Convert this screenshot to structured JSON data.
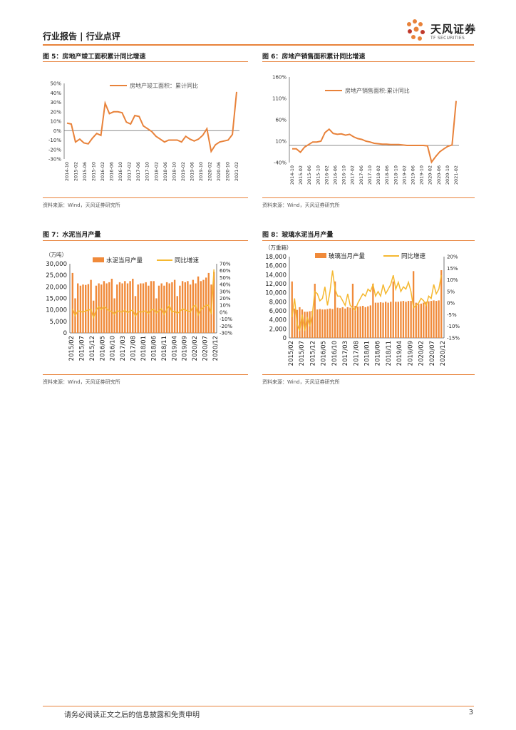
{
  "header": {
    "text": "行业报告 | 行业点评",
    "logo_main": "天风证券",
    "logo_sub": "TF SECURITIES"
  },
  "colors": {
    "accent": "#E8823A",
    "bar": "#F08A3A",
    "line2": "#F5B830"
  },
  "fig5": {
    "title": "图 5：房地产竣工面积累计同比增速",
    "source": "资料来源：Wind，天风证券研究所"
  },
  "fig6": {
    "title": "图 6：房地产销售面积累计同比增速",
    "source": "资料来源：Wind，天风证券研究所"
  },
  "fig7": {
    "title": "图 7：水泥当月产量",
    "source": "资料来源：Wind，天风证券研究所"
  },
  "fig8": {
    "title": "图 8：玻璃水泥当月产量",
    "source": "资料来源：Wind，天风证券研究所"
  },
  "footer": {
    "text": "请务必阅读正文之后的信息披露和免责申明",
    "page": "3"
  },
  "chart_data": [
    {
      "type": "line",
      "legend": "房地产竣工面积：累计同比",
      "yticks": [
        "50%",
        "40%",
        "30%",
        "20%",
        "10%",
        "0%",
        "-10%",
        "-20%",
        "-30%"
      ],
      "ylim": [
        -30,
        50
      ],
      "xticks": [
        "2014-10",
        "2015-02",
        "2015-06",
        "2015-10",
        "2016-02",
        "2016-06",
        "2016-10",
        "2017-02",
        "2017-06",
        "2017-10",
        "2018-02",
        "2018-06",
        "2018-10",
        "2019-02",
        "2019-06",
        "2019-10",
        "2020-02",
        "2020-06",
        "2020-10",
        "2021-02"
      ],
      "values": [
        8,
        7,
        -12,
        -9,
        -13,
        -14,
        -8,
        -3,
        -5,
        29,
        18,
        20,
        20,
        19,
        9,
        7,
        16,
        15,
        5,
        2,
        -1,
        -6,
        -9,
        -12,
        -10,
        -10,
        -10,
        -12,
        -6,
        -9,
        -11,
        -9,
        -5,
        2,
        -22,
        -15,
        -12,
        -11,
        -10,
        -4,
        41
      ]
    },
    {
      "type": "line",
      "legend": "房地产销售面积:累计同比",
      "yticks": [
        "160%",
        "110%",
        "60%",
        "10%",
        "-40%"
      ],
      "ylim": [
        -40,
        160
      ],
      "xticks": [
        "2014-10",
        "2015-02",
        "2015-06",
        "2015-10",
        "2016-02",
        "2016-06",
        "2016-10",
        "2017-02",
        "2017-06",
        "2017-10",
        "2018-02",
        "2018-06",
        "2018-10",
        "2019-02",
        "2019-06",
        "2019-10",
        "2020-02",
        "2020-06",
        "2020-10",
        "2021-02"
      ],
      "values": [
        -8,
        -8,
        -16,
        -4,
        2,
        8,
        8,
        10,
        30,
        38,
        28,
        26,
        27,
        24,
        26,
        20,
        16,
        14,
        10,
        8,
        5,
        4,
        3,
        3,
        2,
        2,
        2,
        1,
        0,
        0,
        0,
        0,
        0,
        -1,
        -39,
        -26,
        -15,
        -8,
        -2,
        1,
        104
      ]
    },
    {
      "type": "bar",
      "series": [
        {
          "name": "水泥当月产量",
          "values": [
            26000,
            15000,
            21500,
            20500,
            21000,
            20800,
            21200,
            23000,
            14000,
            20500,
            21500,
            21000,
            22500,
            21500,
            22000,
            23500,
            15000,
            21000,
            22000,
            21500,
            22500,
            21500,
            22500,
            23500,
            16000,
            21000,
            21500,
            21500,
            22000,
            20500,
            22500,
            22500,
            15000,
            20500,
            21500,
            20500,
            22000,
            21500,
            22000,
            23000,
            16000,
            20500,
            22500,
            22000,
            22500,
            21000,
            23000,
            21500,
            24500,
            22500,
            23000,
            24000,
            26000,
            21000,
            26500
          ]
        },
        {
          "name": "同比增速",
          "values": [
            5,
            -5,
            2,
            1,
            0,
            2,
            3,
            4,
            -8,
            3,
            8,
            4,
            8,
            5,
            2,
            1,
            -3,
            2,
            1,
            0,
            3,
            -1,
            2,
            3,
            -6,
            1,
            0,
            1,
            2,
            -2,
            3,
            4,
            -1,
            2,
            5,
            -3,
            4,
            10,
            0,
            2,
            -2,
            1,
            5,
            3,
            2,
            0,
            8,
            10,
            -4,
            4,
            7,
            10,
            10,
            -3,
            62
          ]
        }
      ],
      "yticks_left": [
        "30,000",
        "25,000",
        "20,000",
        "15,000",
        "10,000",
        "5,000",
        "0"
      ],
      "yticks_right": [
        "70%",
        "60%",
        "50%",
        "40%",
        "30%",
        "20%",
        "10%",
        "0%",
        "-10%",
        "-20%",
        "-30%"
      ],
      "ylim_left": [
        0,
        30000
      ],
      "ylim_right": [
        -30,
        70
      ],
      "unit": "（万吨）",
      "xticks": [
        "2015/02",
        "2015/07",
        "2015/12",
        "2016/05",
        "2016/10",
        "2017/03",
        "2017/08",
        "2018/01",
        "2018/06",
        "2018/11",
        "2019/04",
        "2019/09",
        "2020/02",
        "2020/07",
        "2020/12"
      ]
    },
    {
      "type": "bar",
      "series": [
        {
          "name": "玻璃当月产量",
          "values": [
            12500,
            6500,
            6200,
            6800,
            6300,
            5800,
            5800,
            5900,
            6000,
            12000,
            6300,
            6400,
            6300,
            6300,
            6400,
            6500,
            6400,
            12500,
            6700,
            6600,
            6800,
            6500,
            6800,
            6700,
            12000,
            7100,
            6900,
            7000,
            7100,
            6800,
            7000,
            7200,
            12000,
            7800,
            7800,
            7900,
            7800,
            8000,
            7800,
            8000,
            12500,
            8000,
            8000,
            8100,
            8200,
            8000,
            8200,
            8200,
            14800,
            7800,
            7500,
            7600,
            7800,
            8000,
            8100,
            8200,
            8300,
            8200,
            8300,
            15000
          ]
        },
        {
          "name": "同比增速",
          "values": [
            -6,
            2,
            -9,
            -12,
            -5,
            -12,
            -6,
            -10,
            -5,
            5,
            4,
            1,
            2,
            7,
            -1,
            5,
            14,
            6,
            3,
            3,
            1,
            -1,
            4,
            -1,
            -2,
            -3,
            0,
            2,
            4,
            3,
            6,
            5,
            8,
            3,
            5,
            3,
            8,
            4,
            6,
            8,
            12,
            6,
            9,
            5,
            7,
            6,
            9,
            5,
            -2,
            -1,
            0,
            2,
            1,
            -1,
            3,
            2,
            8,
            4,
            6,
            12
          ]
        }
      ],
      "yticks_left": [
        "18,000",
        "16,000",
        "14,000",
        "12,000",
        "10,000",
        "8,000",
        "6,000",
        "4,000",
        "2,000",
        "0"
      ],
      "yticks_right": [
        "20%",
        "15%",
        "10%",
        "5%",
        "0%",
        "-5%",
        "-10%",
        "-15%"
      ],
      "ylim_left": [
        0,
        18000
      ],
      "ylim_right": [
        -15,
        20
      ],
      "unit": "（万重箱）",
      "xticks": [
        "2015/02",
        "2015/07",
        "2015/12",
        "2016/05",
        "2016/10",
        "2017/03",
        "2017/08",
        "2018/01",
        "2018/06",
        "2018/11",
        "2019/04",
        "2019/09",
        "2020/02",
        "2020/07",
        "2020/12"
      ]
    }
  ]
}
